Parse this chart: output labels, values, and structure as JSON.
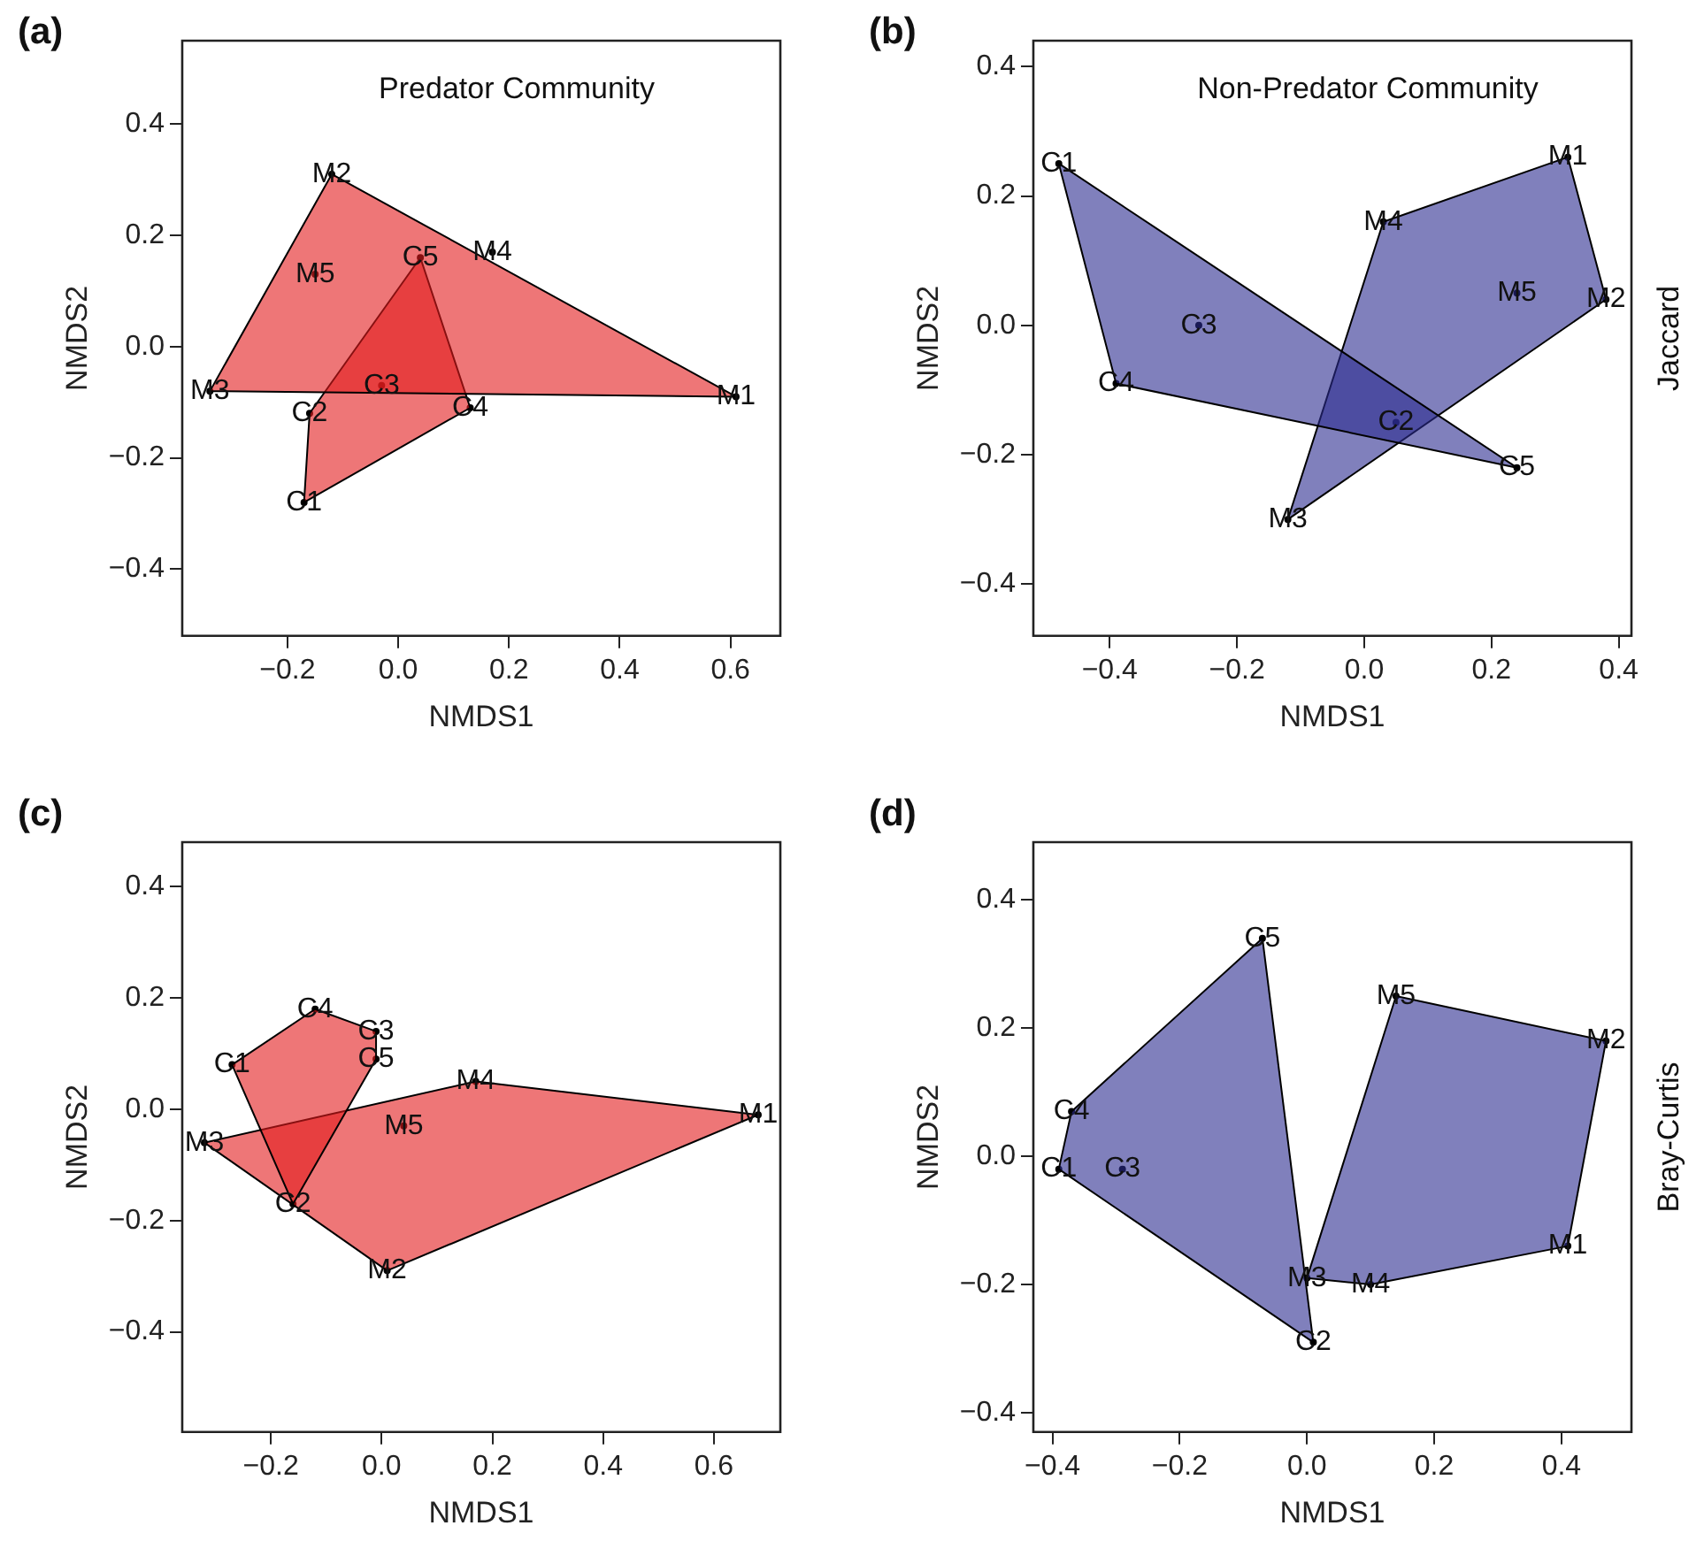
{
  "chart_data": [
    {
      "type": "area",
      "title": "Predator Community",
      "xlabel": "NMDS1",
      "ylabel": "NMDS2",
      "grid": false,
      "legend": false,
      "marker": "none",
      "xlim": [
        -0.39,
        0.69
      ],
      "ylim": [
        -0.52,
        0.55
      ],
      "xticks": [
        {
          "value": -0.2,
          "label": "−0.2"
        },
        {
          "value": 0,
          "label": "0.0"
        },
        {
          "value": 0.2,
          "label": "0.2"
        },
        {
          "value": 0.4,
          "label": "0.4"
        },
        {
          "value": 0.6,
          "label": "0.6"
        }
      ],
      "yticks": [
        {
          "value": -0.4,
          "label": "−0.4"
        },
        {
          "value": -0.2,
          "label": "−0.2"
        },
        {
          "value": 0,
          "label": "0.0"
        },
        {
          "value": 0.2,
          "label": "0.2"
        },
        {
          "value": 0.4,
          "label": "0.4"
        }
      ],
      "series": [
        {
          "type": "area",
          "color": "#e31a1c",
          "x": [
            -0.12,
            0.61,
            -0.34
          ],
          "values": [
            0.31,
            -0.09,
            -0.08
          ]
        },
        {
          "type": "area",
          "color": "#e31a1c",
          "x": [
            0.04,
            0.13,
            -0.17,
            -0.16
          ],
          "values": [
            0.16,
            -0.11,
            -0.28,
            -0.12
          ]
        },
        {
          "type": "scatter",
          "marker": "circle",
          "color": "#000000",
          "x": [
            0.61,
            -0.12,
            -0.34,
            0.17,
            -0.15,
            -0.17,
            -0.16,
            -0.03,
            0.13,
            0.04
          ],
          "values": [
            -0.09,
            0.31,
            -0.08,
            0.17,
            0.13,
            -0.28,
            -0.12,
            -0.07,
            -0.11,
            0.16
          ],
          "value_labels": [
            "M1",
            "M2",
            "M3",
            "M4",
            "M5",
            "C1",
            "C2",
            "C3",
            "C4",
            "C5"
          ]
        }
      ],
      "annotations": [
        "(a)"
      ]
    },
    {
      "type": "area",
      "title": "Non-Predator Community",
      "xlabel": "NMDS1",
      "ylabel": "NMDS2",
      "y2label": "Jaccard",
      "grid": false,
      "legend": false,
      "marker": "none",
      "xlim": [
        -0.52,
        0.42
      ],
      "ylim": [
        -0.48,
        0.44
      ],
      "xticks": [
        {
          "value": -0.4,
          "label": "−0.4"
        },
        {
          "value": -0.2,
          "label": "−0.2"
        },
        {
          "value": 0,
          "label": "0.0"
        },
        {
          "value": 0.2,
          "label": "0.2"
        },
        {
          "value": 0.4,
          "label": "0.4"
        }
      ],
      "yticks": [
        {
          "value": -0.4,
          "label": "−0.4"
        },
        {
          "value": -0.2,
          "label": "−0.2"
        },
        {
          "value": 0,
          "label": "0.0"
        },
        {
          "value": 0.2,
          "label": "0.2"
        },
        {
          "value": 0.4,
          "label": "0.4"
        }
      ],
      "series": [
        {
          "type": "area",
          "color": "#2b2b8f",
          "x": [
            -0.48,
            0.24,
            -0.39
          ],
          "values": [
            0.25,
            -0.22,
            -0.09
          ]
        },
        {
          "type": "area",
          "color": "#2b2b8f",
          "x": [
            0.32,
            0.38,
            -0.12,
            0.03
          ],
          "values": [
            0.26,
            0.04,
            -0.3,
            0.16
          ]
        },
        {
          "type": "scatter",
          "marker": "circle",
          "color": "#000000",
          "x": [
            -0.48,
            0.05,
            -0.26,
            -0.39,
            0.24,
            0.32,
            0.38,
            -0.12,
            0.03,
            0.24
          ],
          "values": [
            0.25,
            -0.15,
            0.0,
            -0.09,
            -0.22,
            0.26,
            0.04,
            -0.3,
            0.16,
            0.05
          ],
          "value_labels": [
            "C1",
            "C2",
            "C3",
            "C4",
            "C5",
            "M1",
            "M2",
            "M3",
            "M4",
            "M5"
          ]
        }
      ],
      "annotations": [
        "(b)"
      ]
    },
    {
      "type": "area",
      "xlabel": "NMDS1",
      "ylabel": "NMDS2",
      "grid": false,
      "legend": false,
      "marker": "none",
      "xlim": [
        -0.36,
        0.72
      ],
      "ylim": [
        -0.58,
        0.48
      ],
      "xticks": [
        {
          "value": -0.2,
          "label": "−0.2"
        },
        {
          "value": 0,
          "label": "0.0"
        },
        {
          "value": 0.2,
          "label": "0.2"
        },
        {
          "value": 0.4,
          "label": "0.4"
        },
        {
          "value": 0.6,
          "label": "0.6"
        }
      ],
      "yticks": [
        {
          "value": -0.4,
          "label": "−0.4"
        },
        {
          "value": -0.2,
          "label": "−0.2"
        },
        {
          "value": 0,
          "label": "0.0"
        },
        {
          "value": 0.2,
          "label": "0.2"
        },
        {
          "value": 0.4,
          "label": "0.4"
        }
      ],
      "series": [
        {
          "type": "area",
          "color": "#e31a1c",
          "x": [
            -0.27,
            -0.12,
            -0.01,
            -0.01,
            -0.16
          ],
          "values": [
            0.08,
            0.18,
            0.14,
            0.09,
            -0.17
          ]
        },
        {
          "type": "area",
          "color": "#e31a1c",
          "x": [
            -0.32,
            0.17,
            0.68,
            0.01
          ],
          "values": [
            -0.06,
            0.05,
            -0.01,
            -0.29
          ]
        },
        {
          "type": "scatter",
          "marker": "circle",
          "color": "#000000",
          "x": [
            -0.27,
            -0.16,
            -0.01,
            -0.12,
            -0.01,
            0.68,
            0.01,
            -0.32,
            0.17,
            0.04
          ],
          "values": [
            0.08,
            -0.17,
            0.14,
            0.18,
            0.09,
            -0.01,
            -0.29,
            -0.06,
            0.05,
            -0.03
          ],
          "value_labels": [
            "C1",
            "C2",
            "C3",
            "C4",
            "C5",
            "M1",
            "M2",
            "M3",
            "M4",
            "M5"
          ]
        }
      ],
      "annotations": [
        "(c)"
      ]
    },
    {
      "type": "area",
      "xlabel": "NMDS1",
      "ylabel": "NMDS2",
      "y2label": "Bray-Curtis",
      "grid": false,
      "legend": false,
      "marker": "none",
      "xlim": [
        -0.43,
        0.51
      ],
      "ylim": [
        -0.43,
        0.49
      ],
      "xticks": [
        {
          "value": -0.4,
          "label": "−0.4"
        },
        {
          "value": -0.2,
          "label": "−0.2"
        },
        {
          "value": 0,
          "label": "0.0"
        },
        {
          "value": 0.2,
          "label": "0.2"
        },
        {
          "value": 0.4,
          "label": "0.4"
        }
      ],
      "yticks": [
        {
          "value": -0.4,
          "label": "−0.4"
        },
        {
          "value": -0.2,
          "label": "−0.2"
        },
        {
          "value": 0,
          "label": "0.0"
        },
        {
          "value": 0.2,
          "label": "0.2"
        },
        {
          "value": 0.4,
          "label": "0.4"
        }
      ],
      "series": [
        {
          "type": "area",
          "color": "#2b2b8f",
          "x": [
            -0.07,
            0.01,
            -0.39,
            -0.37
          ],
          "values": [
            0.34,
            -0.29,
            -0.02,
            0.07
          ]
        },
        {
          "type": "area",
          "color": "#2b2b8f",
          "x": [
            0.14,
            0.47,
            0.41,
            0.1,
            0.0
          ],
          "values": [
            0.25,
            0.18,
            -0.14,
            -0.2,
            -0.19
          ]
        },
        {
          "type": "scatter",
          "marker": "circle",
          "color": "#000000",
          "x": [
            -0.39,
            0.01,
            -0.29,
            -0.37,
            -0.07,
            0.41,
            0.47,
            0.0,
            0.1,
            0.14
          ],
          "values": [
            -0.02,
            -0.29,
            -0.02,
            0.07,
            0.34,
            -0.14,
            0.18,
            -0.19,
            -0.2,
            0.25
          ],
          "value_labels": [
            "C1",
            "C2",
            "C3",
            "C4",
            "C5",
            "M1",
            "M2",
            "M3",
            "M4",
            "M5"
          ]
        }
      ],
      "annotations": [
        "(d)"
      ]
    }
  ]
}
